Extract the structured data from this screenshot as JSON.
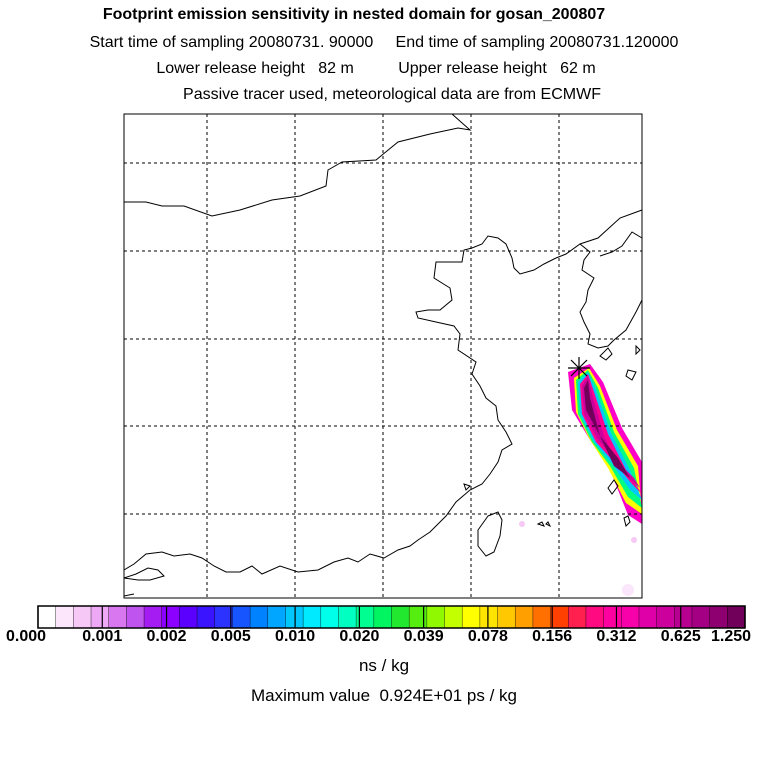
{
  "header": {
    "title": "Footprint emission sensitivity in nested domain for gosan_200807",
    "time_line": "Start time of sampling 20080731. 90000     End time of sampling 20080731.120000",
    "height_line": "Lower release height   82 m          Upper release height   62 m",
    "tracer_line": "Passive tracer used, meteorological data are from ECMWF"
  },
  "colorbar": {
    "labels": [
      "0.000",
      "0.001",
      "0.002",
      "0.005",
      "0.010",
      "0.020",
      "0.039",
      "0.078",
      "0.156",
      "0.312",
      "0.625",
      "1.250"
    ],
    "units": "ns / kg",
    "colors": [
      "#ffffff",
      "#fbe6fb",
      "#f5c8f5",
      "#efa8f5",
      "#d877ef",
      "#c054ef",
      "#a41cf2",
      "#8b00ff",
      "#5b00ff",
      "#3a13ff",
      "#2c33ff",
      "#1756ff",
      "#0082ff",
      "#00a6ff",
      "#00c8ff",
      "#00eaff",
      "#00ffea",
      "#00ffc0",
      "#00ff90",
      "#00f560",
      "#22e830",
      "#55ee10",
      "#90f800",
      "#c4ff00",
      "#ffff00",
      "#ffe400",
      "#ffc800",
      "#ffa000",
      "#ff7000",
      "#ff4000",
      "#ff2050",
      "#ff0a80",
      "#ff00a0",
      "#f800aa",
      "#e000a8",
      "#cc009c",
      "#b80090",
      "#a40084",
      "#8e0070",
      "#70005a"
    ]
  },
  "max_value": "Maximum value  0.924E+01 ps / kg"
}
